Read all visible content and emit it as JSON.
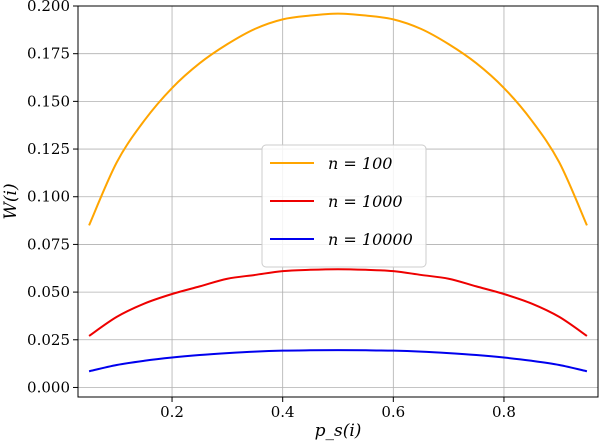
{
  "chart_data": {
    "type": "line",
    "xlabel": "p_s(i)",
    "ylabel": "W(i)",
    "xlim": [
      0.03,
      0.97
    ],
    "ylim": [
      -0.005,
      0.2
    ],
    "xticks": [
      0.2,
      0.4,
      0.6,
      0.8
    ],
    "xtick_labels": [
      "0.2",
      "0.4",
      "0.6",
      "0.8"
    ],
    "yticks": [
      0.0,
      0.025,
      0.05,
      0.075,
      0.1,
      0.125,
      0.15,
      0.175,
      0.2
    ],
    "ytick_labels": [
      "0.000",
      "0.025",
      "0.050",
      "0.075",
      "0.100",
      "0.125",
      "0.150",
      "0.175",
      "0.200"
    ],
    "grid": true,
    "legend_position": "center",
    "series": [
      {
        "name": "n = 100",
        "color": "#FFA500",
        "x": [
          0.05,
          0.1,
          0.15,
          0.2,
          0.25,
          0.3,
          0.35,
          0.4,
          0.45,
          0.5,
          0.55,
          0.6,
          0.65,
          0.7,
          0.75,
          0.8,
          0.85,
          0.9,
          0.95
        ],
        "y": [
          0.085,
          0.118,
          0.14,
          0.157,
          0.17,
          0.18,
          0.188,
          0.193,
          0.195,
          0.196,
          0.195,
          0.193,
          0.188,
          0.18,
          0.17,
          0.157,
          0.14,
          0.118,
          0.085
        ]
      },
      {
        "name": "n = 1000",
        "color": "#EE0000",
        "x": [
          0.05,
          0.1,
          0.15,
          0.2,
          0.25,
          0.3,
          0.35,
          0.4,
          0.45,
          0.5,
          0.55,
          0.6,
          0.65,
          0.7,
          0.75,
          0.8,
          0.85,
          0.9,
          0.95
        ],
        "y": [
          0.027,
          0.037,
          0.044,
          0.049,
          0.053,
          0.057,
          0.059,
          0.061,
          0.0617,
          0.062,
          0.0617,
          0.061,
          0.059,
          0.057,
          0.053,
          0.049,
          0.044,
          0.037,
          0.027
        ]
      },
      {
        "name": "n = 10000",
        "color": "#0000EE",
        "x": [
          0.05,
          0.1,
          0.15,
          0.2,
          0.25,
          0.3,
          0.35,
          0.4,
          0.45,
          0.5,
          0.55,
          0.6,
          0.65,
          0.7,
          0.75,
          0.8,
          0.85,
          0.9,
          0.95
        ],
        "y": [
          0.0085,
          0.0118,
          0.014,
          0.0157,
          0.017,
          0.018,
          0.0188,
          0.0193,
          0.0195,
          0.0196,
          0.0195,
          0.0193,
          0.0188,
          0.018,
          0.017,
          0.0157,
          0.014,
          0.0118,
          0.0085
        ]
      }
    ]
  }
}
